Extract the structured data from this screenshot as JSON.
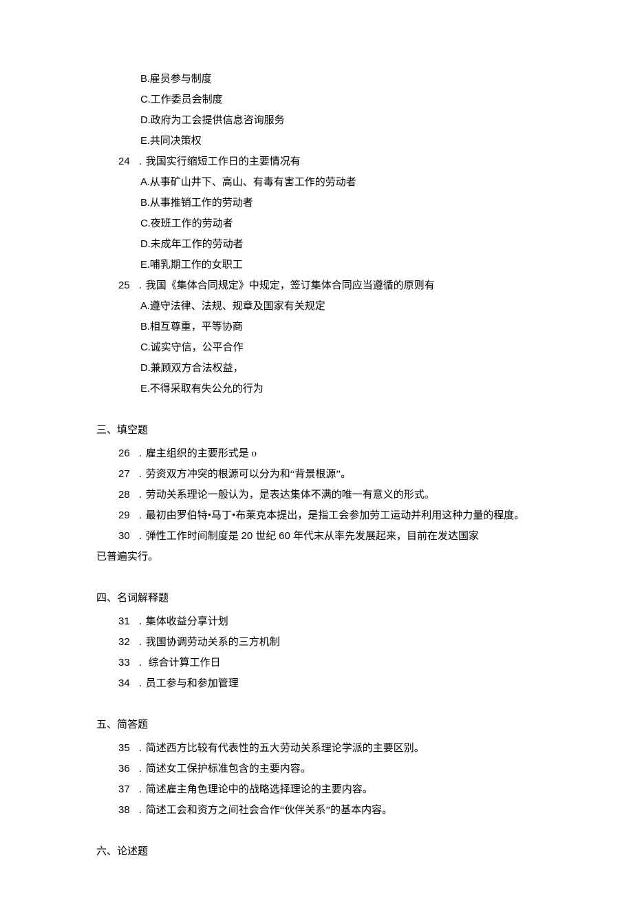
{
  "q23_trailing_options": [
    {
      "letter": "B",
      "text": "雇员参与制度"
    },
    {
      "letter": "C",
      "text": "工作委员会制度"
    },
    {
      "letter": "D",
      "text": "政府为工会提供信息咨询服务"
    },
    {
      "letter": "E",
      "text": "共同决策权"
    }
  ],
  "q24": {
    "num": "24",
    "stem": "我国实行缩短工作日的主要情况有",
    "options": [
      {
        "letter": "A",
        "text": "从事矿山井下、高山、有毒有害工作的劳动者"
      },
      {
        "letter": "B",
        "text": "从事推销工作的劳动者"
      },
      {
        "letter": "C",
        "text": "夜班工作的劳动者"
      },
      {
        "letter": "D",
        "text": "未成年工作的劳动者"
      },
      {
        "letter": "E",
        "text": "哺乳期工作的女职工"
      }
    ]
  },
  "q25": {
    "num": "25",
    "stem": "我国《集体合同规定》中规定，签订集体合同应当遵循的原则有",
    "options": [
      {
        "letter": "A",
        "text": "遵守法律、法规、规章及国家有关规定"
      },
      {
        "letter": "B",
        "text": "相互尊重，平等协商"
      },
      {
        "letter": "C",
        "text": "诚实守信，公平合作"
      },
      {
        "letter": "D",
        "text": "兼顾双方合法权益，"
      },
      {
        "letter": "E",
        "text": "不得采取有失公允的行为"
      }
    ]
  },
  "sec3": {
    "title": "三、填空题",
    "items": [
      {
        "num": "26",
        "text": "雇主组织的主要形式是 o"
      },
      {
        "num": "27",
        "text": "劳资双方冲突的根源可以分为和“背景根源”。"
      },
      {
        "num": "28",
        "text": "劳动关系理论一般认为，是表达集体不满的唯一有意义的形式。"
      },
      {
        "num": "29",
        "text": "最初由罗伯特•马丁•布莱克本提出，是指工会参加劳工运动并利用这种力量的程度。"
      }
    ],
    "q30": {
      "num": "30",
      "prefix": "弹性工作时间制度是 ",
      "mid_roman": "20 ",
      "mid_cn": "世纪 ",
      "mid_roman2": "60 ",
      "suffix": "年代末从率先发展起来，目前在发达国家"
    },
    "trailing": "已普遍实行。"
  },
  "sec4": {
    "title": "四、名词解释题",
    "items": [
      {
        "num": "31",
        "text": "集体收益分享计划"
      },
      {
        "num": "32",
        "text": "我国协调劳动关系的三方机制"
      },
      {
        "num": "33",
        "text": " 综合计算工作日"
      },
      {
        "num": "34",
        "text": "员工参与和参加管理"
      }
    ]
  },
  "sec5": {
    "title": "五、简答题",
    "items": [
      {
        "num": "35",
        "text": "简述西方比较有代表性的五大劳动关系理论学派的主要区别。"
      },
      {
        "num": "36",
        "text": "简述女工保护标准包含的主要内容。"
      },
      {
        "num": "37",
        "text": "简述雇主角色理论中的战略选择理论的主要内容。"
      },
      {
        "num": "38",
        "text": "简述工会和资方之间社会合作“伙伴关系”的基本内容。"
      }
    ]
  },
  "sec6": {
    "title": "六、论述题"
  }
}
